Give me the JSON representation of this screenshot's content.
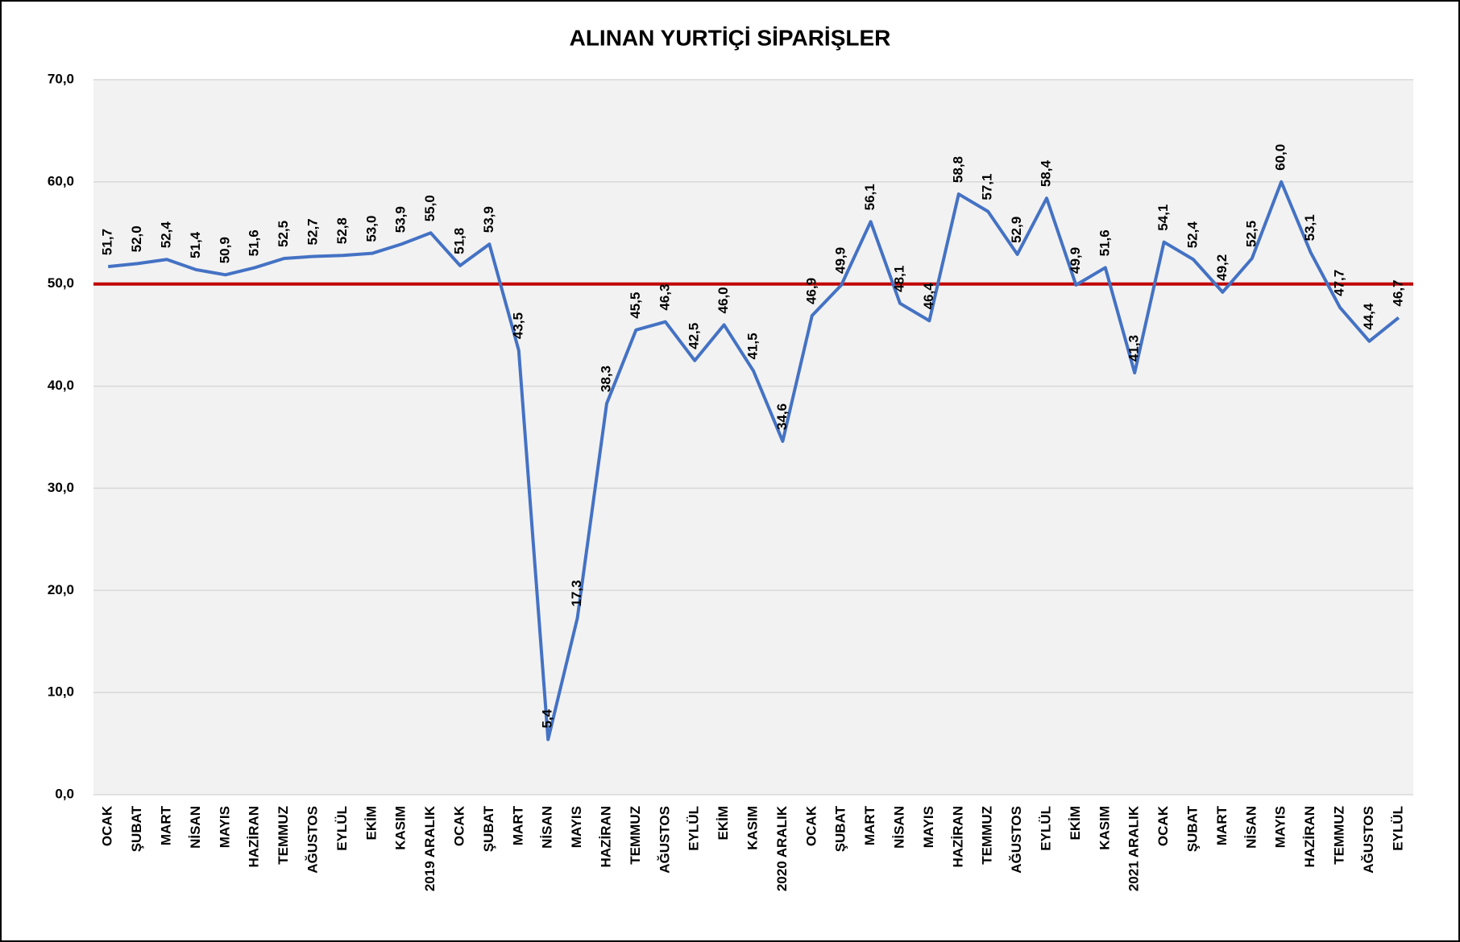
{
  "chart_data": {
    "type": "line",
    "title": "ALINAN YURTİÇİ SİPARİŞLER",
    "categories": [
      "OCAK",
      "ŞUBAT",
      "MART",
      "NİSAN",
      "MAYIS",
      "HAZİRAN",
      "TEMMUZ",
      "AĞUSTOS",
      "EYLÜL",
      "EKİM",
      "KASIM",
      "2019 ARALIK",
      "OCAK",
      "ŞUBAT",
      "MART",
      "NİSAN",
      "MAYIS",
      "HAZİRAN",
      "TEMMUZ",
      "AĞUSTOS",
      "EYLÜL",
      "EKİM",
      "KASIM",
      "2020 ARALIK",
      "OCAK",
      "ŞUBAT",
      "MART",
      "NİSAN",
      "MAYIS",
      "HAZİRAN",
      "TEMMUZ",
      "AĞUSTOS",
      "EYLÜL",
      "EKİM",
      "KASIM",
      "2021 ARALIK",
      "OCAK",
      "ŞUBAT",
      "MART",
      "NİSAN",
      "MAYIS",
      "HAZİRAN",
      "TEMMUZ",
      "AĞUSTOS",
      "EYLÜL"
    ],
    "values": [
      51.7,
      52.0,
      52.4,
      51.4,
      50.9,
      51.6,
      52.5,
      52.7,
      52.8,
      53.0,
      53.9,
      55.0,
      51.8,
      53.9,
      43.5,
      5.4,
      17.3,
      38.3,
      45.5,
      46.3,
      42.5,
      46.0,
      41.5,
      34.6,
      46.9,
      49.9,
      56.1,
      48.1,
      46.4,
      58.8,
      57.1,
      52.9,
      58.4,
      49.9,
      51.6,
      41.3,
      54.1,
      52.4,
      49.2,
      52.5,
      60.0,
      53.1,
      47.7,
      44.4,
      46.7
    ],
    "value_labels": [
      "51,7",
      "52,0",
      "52,4",
      "51,4",
      "50,9",
      "51,6",
      "52,5",
      "52,7",
      "52,8",
      "53,0",
      "53,9",
      "55,0",
      "51,8",
      "53,9",
      "43,5",
      "5,4",
      "17,3",
      "38,3",
      "45,5",
      "46,3",
      "42,5",
      "46,0",
      "41,5",
      "34,6",
      "46,9",
      "49,9",
      "56,1",
      "48,1",
      "46,4",
      "58,8",
      "57,1",
      "52,9",
      "58,4",
      "49,9",
      "51,6",
      "41,3",
      "54,1",
      "52,4",
      "49,2",
      "52,5",
      "60,0",
      "53,1",
      "47,7",
      "44,4",
      "46,7"
    ],
    "color": "#4472c4",
    "ylim": [
      0,
      70
    ],
    "yticks": [
      {
        "value": 0,
        "label": "0,0"
      },
      {
        "value": 10,
        "label": "10,0"
      },
      {
        "value": 20,
        "label": "20,0"
      },
      {
        "value": 30,
        "label": "30,0"
      },
      {
        "value": 40,
        "label": "40,0"
      },
      {
        "value": 50,
        "label": "50,0"
      },
      {
        "value": 60,
        "label": "60,0"
      },
      {
        "value": 70,
        "label": "70,0"
      }
    ],
    "grid": true,
    "reference_line": {
      "value": 50,
      "color": "#c00000"
    }
  }
}
